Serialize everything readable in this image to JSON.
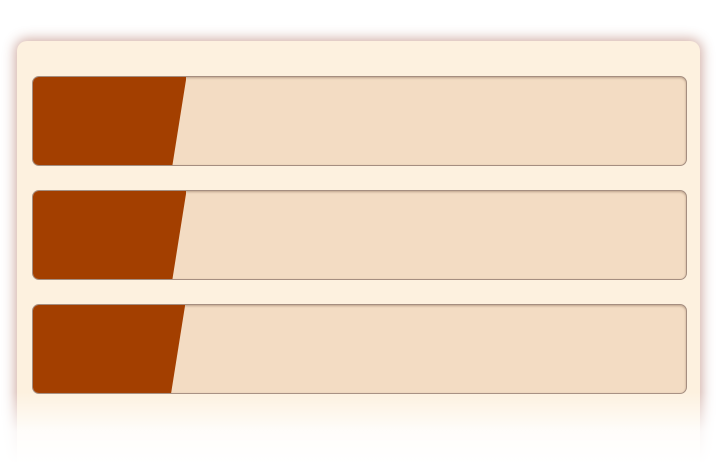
{
  "colors": {
    "panel_background": "#fdf1df",
    "track": "#f3dcc3",
    "fill": "#a33f00",
    "border": "#a58e80"
  },
  "progress_bars": [
    {
      "progress": 0.235
    },
    {
      "progress": 0.235
    },
    {
      "progress": 0.233
    }
  ]
}
